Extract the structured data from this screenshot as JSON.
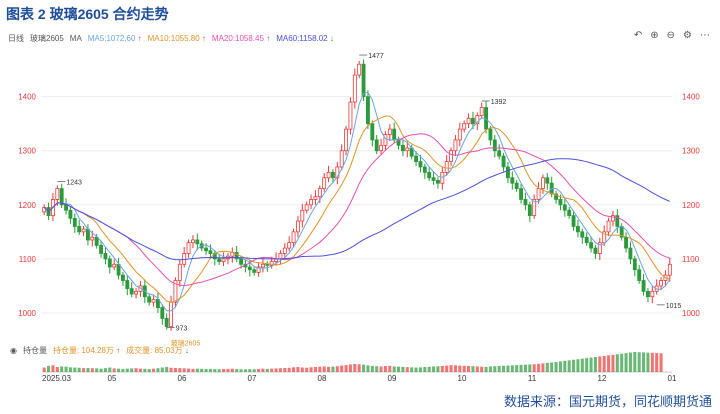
{
  "figure_title": "图表 2 玻璃2605 合约走势",
  "source_note": "数据来源：国元期货，同花顺期货通",
  "toolbar": {
    "period": "日线",
    "symbol": "玻璃2605",
    "ma_prefix": "MA",
    "ma5": "MA5:1072.60",
    "ma10": "MA10:1055.80",
    "ma20": "MA20:1058.45",
    "ma60": "MA60:1158.02",
    "tool_icons": [
      "undo-icon",
      "zoom-in-icon",
      "zoom-out-icon",
      "settings-icon",
      "more-icon"
    ]
  },
  "volume_panel": {
    "toggle_label": "持仓量",
    "open_interest": "持仓量: 104.28万",
    "volume": "成交量: 85.03万"
  },
  "colors": {
    "up": "#e83a3a",
    "down": "#2a9a3a",
    "ma5": "#6aa4de",
    "ma10": "#e0932a",
    "ma20": "#e34fb0",
    "ma60": "#4b4fd8",
    "title": "#1f4e99"
  },
  "chart_data": {
    "type": "candlestick",
    "ylim": [
      950,
      1490
    ],
    "y_ticks": [
      1000,
      1100,
      1200,
      1300,
      1400
    ],
    "x_ticks": [
      "2025.03",
      "05",
      "06",
      "07",
      "08",
      "09",
      "10",
      "11",
      "12",
      "01"
    ],
    "annotations": [
      {
        "label": "1243",
        "value": 1243
      },
      {
        "label": "1477",
        "value": 1477
      },
      {
        "label": "1392",
        "value": 1392
      },
      {
        "label": "973",
        "value": 973
      },
      {
        "label": "玻璃2605",
        "value": null
      },
      {
        "label": "1015",
        "value": 1015
      }
    ],
    "closes": [
      1195,
      1180,
      1210,
      1230,
      1200,
      1190,
      1175,
      1160,
      1150,
      1155,
      1135,
      1140,
      1125,
      1110,
      1100,
      1085,
      1090,
      1070,
      1060,
      1045,
      1035,
      1040,
      1050,
      1030,
      1020,
      1025,
      1010,
      990,
      975,
      1020,
      1060,
      1090,
      1110,
      1130,
      1135,
      1128,
      1120,
      1115,
      1110,
      1100,
      1095,
      1100,
      1105,
      1112,
      1100,
      1090,
      1085,
      1080,
      1075,
      1085,
      1090,
      1088,
      1095,
      1100,
      1110,
      1120,
      1130,
      1150,
      1170,
      1190,
      1200,
      1210,
      1215,
      1230,
      1250,
      1260,
      1250,
      1270,
      1300,
      1340,
      1390,
      1440,
      1460,
      1400,
      1350,
      1320,
      1300,
      1310,
      1330,
      1340,
      1320,
      1310,
      1300,
      1305,
      1290,
      1280,
      1270,
      1260,
      1250,
      1245,
      1240,
      1260,
      1280,
      1300,
      1320,
      1340,
      1350,
      1360,
      1350,
      1365,
      1380,
      1340,
      1320,
      1300,
      1290,
      1270,
      1250,
      1240,
      1230,
      1210,
      1200,
      1180,
      1210,
      1230,
      1250,
      1240,
      1220,
      1210,
      1200,
      1190,
      1180,
      1160,
      1150,
      1140,
      1130,
      1120,
      1110,
      1130,
      1150,
      1170,
      1180,
      1160,
      1140,
      1120,
      1100,
      1080,
      1060,
      1040,
      1030,
      1040,
      1050,
      1060,
      1070,
      1090
    ],
    "volume": [
      40,
      55,
      60,
      45,
      50,
      48,
      42,
      40,
      38,
      35,
      36,
      34,
      33,
      30,
      35,
      40,
      32,
      30,
      28,
      30,
      32,
      35,
      30,
      28,
      26,
      30,
      34,
      40,
      45,
      38,
      36,
      35,
      33,
      30,
      28,
      30,
      29,
      27,
      28,
      26,
      25,
      27,
      28,
      30,
      26,
      25,
      24,
      26,
      25,
      27,
      30,
      28,
      30,
      32,
      34,
      36,
      38,
      42,
      45,
      40,
      38,
      42,
      45,
      48,
      50,
      46,
      48,
      52,
      58,
      62,
      68,
      72,
      70,
      66,
      60,
      55,
      52,
      50,
      54,
      56,
      50,
      48,
      46,
      44,
      42,
      40,
      42,
      45,
      47,
      50,
      52,
      54,
      58,
      62,
      60,
      58,
      56,
      54,
      52,
      50,
      48,
      46,
      50,
      52,
      54,
      56,
      58,
      60,
      62,
      64,
      66,
      68,
      70,
      74,
      78,
      82,
      86,
      90,
      95,
      100,
      105,
      110,
      115,
      120,
      125,
      130,
      135,
      140,
      145,
      150,
      155,
      160,
      165,
      170,
      175,
      180,
      178,
      176,
      174,
      172,
      170,
      168
    ]
  }
}
